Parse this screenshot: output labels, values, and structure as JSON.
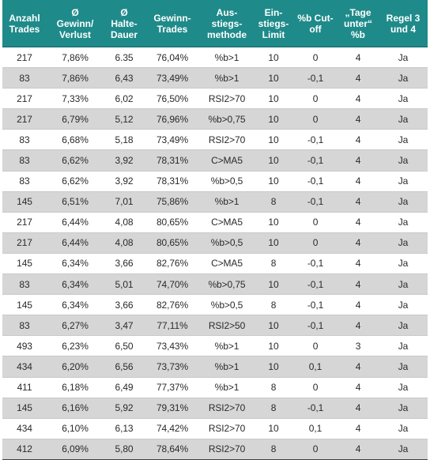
{
  "headers": [
    "Anzahl\nTrades",
    "Ø\nGewinn/\nVerlust",
    "Ø\nHalte-\nDauer",
    "Gewinn-\nTrades",
    "Aus-\nstiegs-\nmethode",
    "Ein-\nstiegs-\nLimit",
    "%b Cut-\noff",
    "„Tage\nunter“\n%b",
    "Regel 3\nund 4"
  ],
  "rows": [
    [
      "217",
      "7,86%",
      "6.35",
      "76,04%",
      "%b>1",
      "10",
      "0",
      "4",
      "Ja"
    ],
    [
      "83",
      "7,86%",
      "6,43",
      "73,49%",
      "%b>1",
      "10",
      "-0,1",
      "4",
      "Ja"
    ],
    [
      "217",
      "7,33%",
      "6,02",
      "76,50%",
      "RSI2>70",
      "10",
      "0",
      "4",
      "Ja"
    ],
    [
      "217",
      "6,79%",
      "5,12",
      "76,96%",
      "%b>0,75",
      "10",
      "0",
      "4",
      "Ja"
    ],
    [
      "83",
      "6,68%",
      "5,18",
      "73,49%",
      "RSI2>70",
      "10",
      "-0,1",
      "4",
      "Ja"
    ],
    [
      "83",
      "6,62%",
      "3,92",
      "78,31%",
      "C>MA5",
      "10",
      "-0,1",
      "4",
      "Ja"
    ],
    [
      "83",
      "6,62%",
      "3,92",
      "78,31%",
      "%b>0,5",
      "10",
      "-0,1",
      "4",
      "Ja"
    ],
    [
      "145",
      "6,51%",
      "7,01",
      "75,86%",
      "%b>1",
      "8",
      "-0,1",
      "4",
      "Ja"
    ],
    [
      "217",
      "6,44%",
      "4,08",
      "80,65%",
      "C>MA5",
      "10",
      "0",
      "4",
      "Ja"
    ],
    [
      "217",
      "6,44%",
      "4,08",
      "80,65%",
      "%b>0,5",
      "10",
      "0",
      "4",
      "Ja"
    ],
    [
      "145",
      "6,34%",
      "3,66",
      "82,76%",
      "C>MA5",
      "8",
      "-0,1",
      "4",
      "Ja"
    ],
    [
      "83",
      "6,34%",
      "5,01",
      "74,70%",
      "%b>0,75",
      "10",
      "-0,1",
      "4",
      "Ja"
    ],
    [
      "145",
      "6,34%",
      "3,66",
      "82,76%",
      "%b>0,5",
      "8",
      "-0,1",
      "4",
      "Ja"
    ],
    [
      "83",
      "6,27%",
      "3,47",
      "77,11%",
      "RSI2>50",
      "10",
      "-0,1",
      "4",
      "Ja"
    ],
    [
      "493",
      "6,23%",
      "6,50",
      "73,43%",
      "%b>1",
      "10",
      "0",
      "3",
      "Ja"
    ],
    [
      "434",
      "6,20%",
      "6,56",
      "73,73%",
      "%b>1",
      "10",
      "0,1",
      "4",
      "Ja"
    ],
    [
      "411",
      "6,18%",
      "6,49",
      "77,37%",
      "%b>1",
      "8",
      "0",
      "4",
      "Ja"
    ],
    [
      "145",
      "6,16%",
      "5,92",
      "79,31%",
      "RSI2>70",
      "8",
      "-0,1",
      "4",
      "Ja"
    ],
    [
      "434",
      "6,10%",
      "6,13",
      "74,42%",
      "RSI2>70",
      "10",
      "0,1",
      "4",
      "Ja"
    ],
    [
      "412",
      "6,09%",
      "5,80",
      "78,64%",
      "RSI2>70",
      "8",
      "0",
      "4",
      "Ja"
    ]
  ],
  "colors": {
    "header_bg": "#1f8a8a",
    "header_text": "#ffffff",
    "row_alt_bg": "#d6d6d6",
    "row_bg": "#ffffff"
  }
}
